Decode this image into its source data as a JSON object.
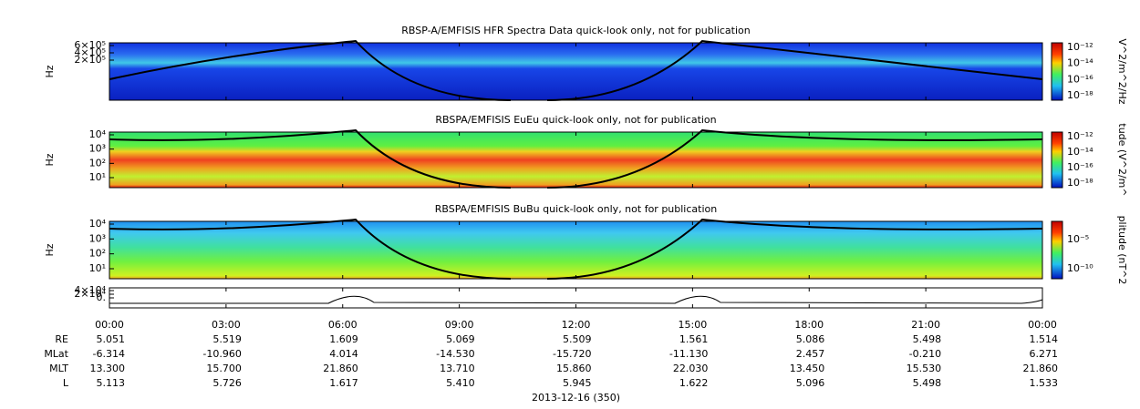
{
  "panels": [
    {
      "title": "RBSP-A/EMFISIS  HFR Spectra Data quick-look only, not for publication",
      "ylabel": "Hz",
      "yticks": [
        "6×10⁵",
        "4×10⁵",
        "2×10⁵"
      ],
      "colorbar_label": "V^2/m^2/Hz",
      "colorbar_ticks": [
        "10⁻¹²",
        "10⁻¹⁴",
        "10⁻¹⁶",
        "10⁻¹⁸"
      ]
    },
    {
      "title": "RBSPA/EMFISIS  EuEu quick-look only, not for publication",
      "ylabel": "Hz",
      "yticks": [
        "10⁴",
        "10³",
        "10²",
        "10¹"
      ],
      "colorbar_label": "tude (V^2/m^",
      "colorbar_ticks": [
        "10⁻¹²",
        "10⁻¹⁴",
        "10⁻¹⁶",
        "10⁻¹⁸"
      ]
    },
    {
      "title": "RBSPA/EMFISIS  BuBu quick-look only, not for publication",
      "ylabel": "Hz",
      "yticks": [
        "10⁴",
        "10³",
        "10²",
        "10¹"
      ],
      "colorbar_label": "plitude (nT^2",
      "colorbar_ticks": [
        "10⁻⁵",
        "10⁻¹⁰"
      ]
    },
    {
      "yticks": [
        "4×10⁴",
        "2×10⁴",
        "0."
      ]
    }
  ],
  "time_ticks": [
    "00:00",
    "03:00",
    "06:00",
    "09:00",
    "12:00",
    "15:00",
    "18:00",
    "21:00",
    "00:00"
  ],
  "ephemeris": [
    {
      "label": "RE",
      "values": [
        "5.051",
        "5.519",
        "1.609",
        "5.069",
        "5.509",
        "1.561",
        "5.086",
        "5.498",
        "1.514"
      ]
    },
    {
      "label": "MLat",
      "values": [
        "-6.314",
        "-10.960",
        "4.014",
        "-14.530",
        "-15.720",
        "-11.130",
        "2.457",
        "-0.210",
        "6.271"
      ]
    },
    {
      "label": "MLT",
      "values": [
        "13.300",
        "15.700",
        "21.860",
        "13.710",
        "15.860",
        "22.030",
        "13.450",
        "15.530",
        "21.860"
      ]
    },
    {
      "label": "L",
      "values": [
        "5.113",
        "5.726",
        "1.617",
        "5.410",
        "5.945",
        "1.622",
        "5.096",
        "5.498",
        "1.533"
      ]
    }
  ],
  "date": "2013-12-16 (350)"
}
